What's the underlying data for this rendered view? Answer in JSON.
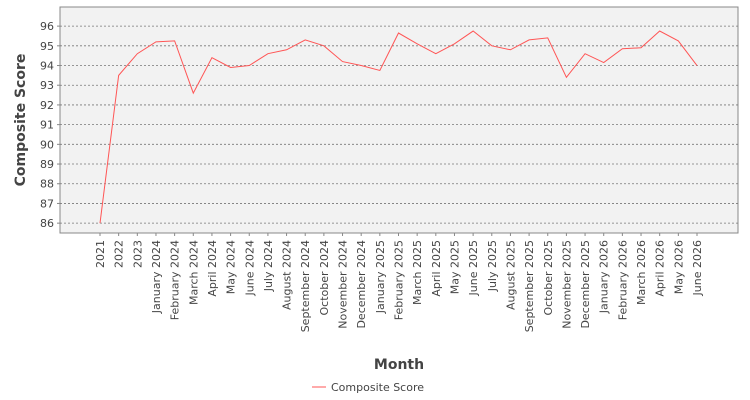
{
  "chart_data": {
    "type": "line",
    "x_label": "Month",
    "y_label": "Composite Score",
    "categories": [
      "2021",
      "2022",
      "2023",
      "January 2024",
      "February 2024",
      "March 2024",
      "April 2024",
      "May 2024",
      "June 2024",
      "July 2024",
      "August 2024",
      "September 2024",
      "October 2024",
      "November 2024",
      "December 2024",
      "January 2025",
      "February 2025",
      "March 2025",
      "April 2025",
      "May 2025",
      "June 2025",
      "July 2025",
      "August 2025",
      "September 2025",
      "October 2025",
      "November 2025",
      "December 2025",
      "January 2026",
      "February 2026",
      "March 2026",
      "April 2026",
      "May 2026",
      "June 2026"
    ],
    "series": [
      {
        "name": "Composite Score",
        "color": "#ff5555",
        "values": [
          86.0,
          93.5,
          94.6,
          95.2,
          95.25,
          92.6,
          94.4,
          93.9,
          94.0,
          94.6,
          94.8,
          95.3,
          95.0,
          94.2,
          94.0,
          93.75,
          95.65,
          95.1,
          94.6,
          95.1,
          95.75,
          95.0,
          94.8,
          95.3,
          95.4,
          93.4,
          94.6,
          94.15,
          94.85,
          94.9,
          95.75,
          95.25,
          94.0
        ]
      }
    ],
    "ylim": [
      85.5,
      96.97
    ],
    "yticks": [
      86,
      87,
      88,
      89,
      90,
      91,
      92,
      93,
      94,
      95,
      96
    ],
    "grid": true,
    "legend": "bottom"
  }
}
